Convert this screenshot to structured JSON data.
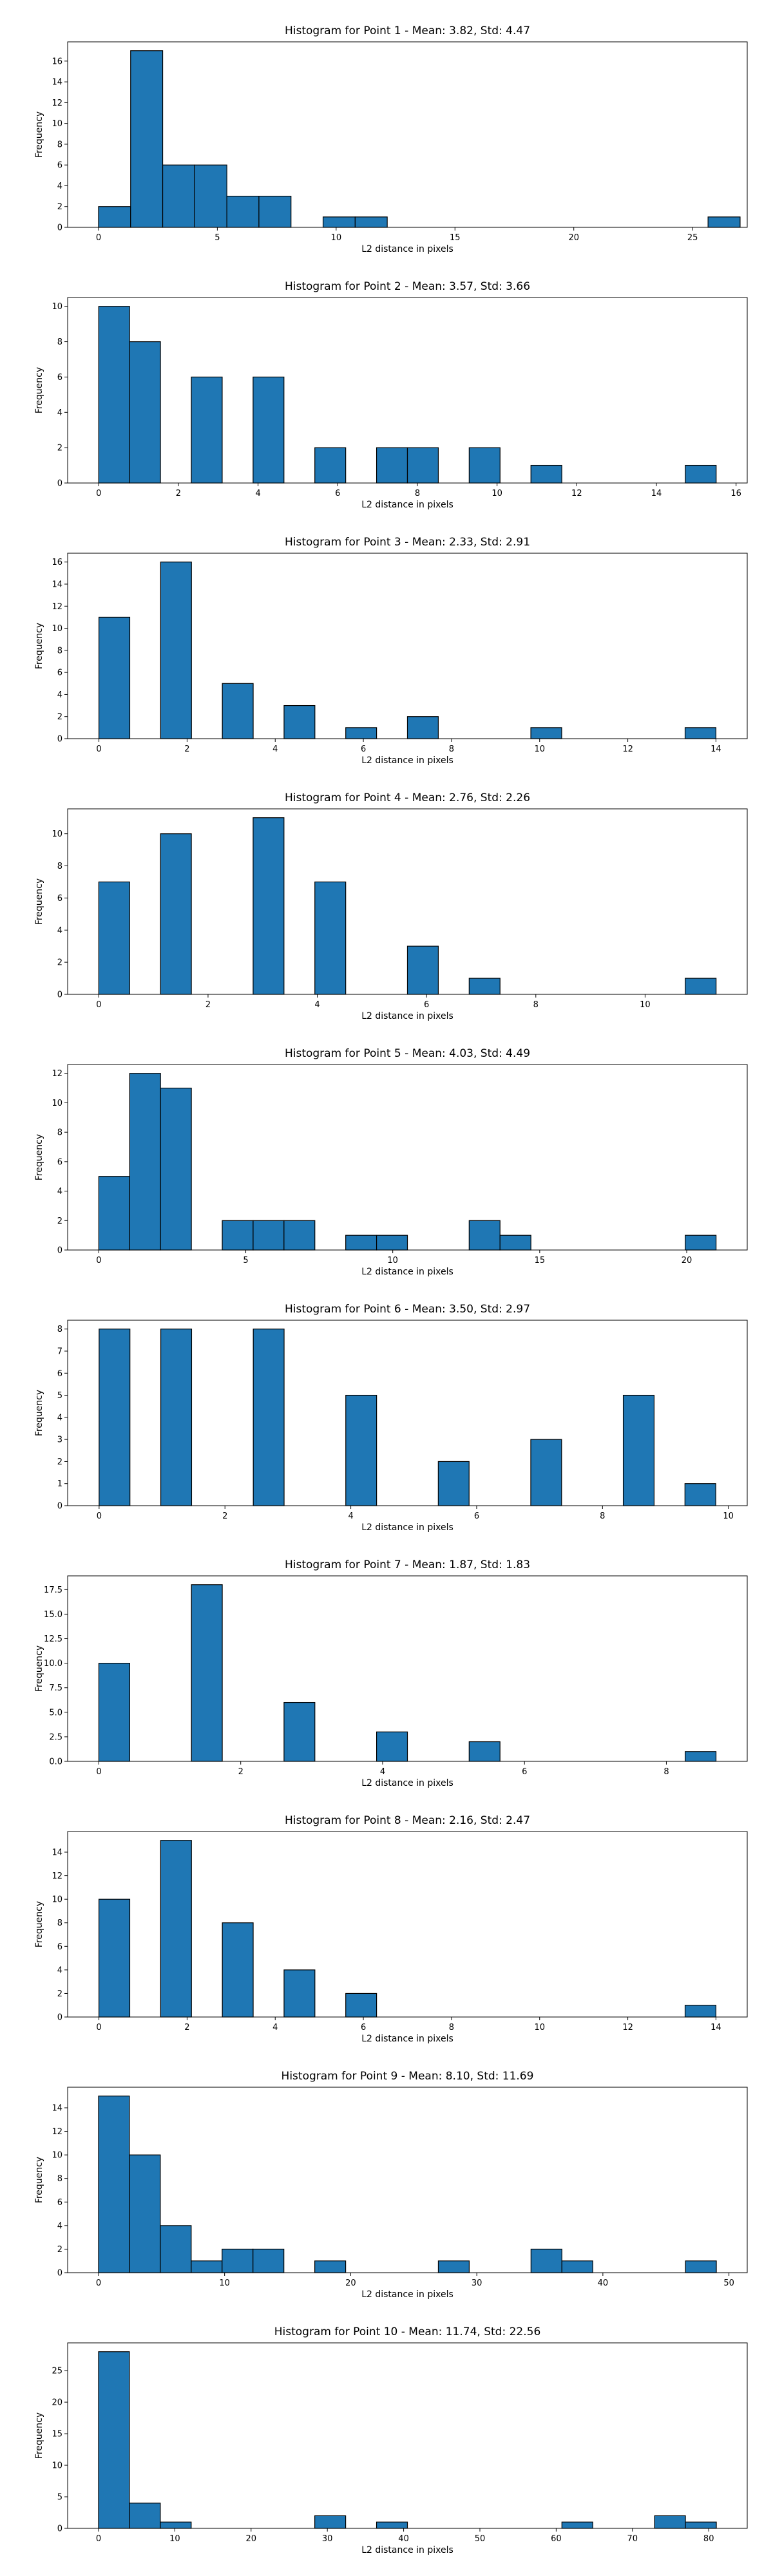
{
  "style": {
    "bar_color": "#1f77b4",
    "edge_color": "#000000"
  },
  "chart_data": [
    {
      "type": "bar",
      "title": "Histogram for Point 1 - Mean: 3.82, Std: 4.47",
      "xlabel": "L2 distance in pixels",
      "ylabel": "Frequency",
      "xlim": [
        -1.3,
        27.3
      ],
      "ylim": [
        0,
        17.85
      ],
      "xticks": [
        0,
        5,
        10,
        15,
        20,
        25
      ],
      "yticks": [
        0,
        2,
        4,
        6,
        8,
        10,
        12,
        14,
        16
      ],
      "bins": [
        {
          "x0": 0.0,
          "x1": 1.35,
          "count": 2
        },
        {
          "x0": 1.35,
          "x1": 2.7,
          "count": 17
        },
        {
          "x0": 2.7,
          "x1": 4.05,
          "count": 6
        },
        {
          "x0": 4.05,
          "x1": 5.4,
          "count": 6
        },
        {
          "x0": 5.4,
          "x1": 6.75,
          "count": 3
        },
        {
          "x0": 6.75,
          "x1": 8.1,
          "count": 3
        },
        {
          "x0": 9.45,
          "x1": 10.8,
          "count": 1
        },
        {
          "x0": 10.8,
          "x1": 12.15,
          "count": 1
        },
        {
          "x0": 25.65,
          "x1": 27.0,
          "count": 1
        }
      ]
    },
    {
      "type": "bar",
      "title": "Histogram for Point 2 - Mean: 3.57, Std: 3.66",
      "xlabel": "L2 distance in pixels",
      "ylabel": "Frequency",
      "xlim": [
        -0.78,
        16.28
      ],
      "ylim": [
        0,
        10.5
      ],
      "xticks": [
        0,
        2,
        4,
        6,
        8,
        10,
        12,
        14,
        16
      ],
      "yticks": [
        0,
        2,
        4,
        6,
        8,
        10
      ],
      "bins": [
        {
          "x0": 0.0,
          "x1": 0.775,
          "count": 10
        },
        {
          "x0": 0.775,
          "x1": 1.55,
          "count": 8
        },
        {
          "x0": 2.325,
          "x1": 3.1,
          "count": 6
        },
        {
          "x0": 3.875,
          "x1": 4.65,
          "count": 6
        },
        {
          "x0": 5.425,
          "x1": 6.2,
          "count": 2
        },
        {
          "x0": 6.975,
          "x1": 7.75,
          "count": 2
        },
        {
          "x0": 7.75,
          "x1": 8.525,
          "count": 2
        },
        {
          "x0": 9.3,
          "x1": 10.075,
          "count": 2
        },
        {
          "x0": 10.85,
          "x1": 11.625,
          "count": 1
        },
        {
          "x0": 14.725,
          "x1": 15.5,
          "count": 1
        }
      ]
    },
    {
      "type": "bar",
      "title": "Histogram for Point 3 - Mean: 2.33, Std: 2.91",
      "xlabel": "L2 distance in pixels",
      "ylabel": "Frequency",
      "xlim": [
        -0.71,
        14.71
      ],
      "ylim": [
        0,
        16.8
      ],
      "xticks": [
        0,
        2,
        4,
        6,
        8,
        10,
        12,
        14
      ],
      "yticks": [
        0,
        2,
        4,
        6,
        8,
        10,
        12,
        14,
        16
      ],
      "bins": [
        {
          "x0": 0.0,
          "x1": 0.7,
          "count": 11
        },
        {
          "x0": 1.4,
          "x1": 2.1,
          "count": 16
        },
        {
          "x0": 2.8,
          "x1": 3.5,
          "count": 5
        },
        {
          "x0": 4.2,
          "x1": 4.9,
          "count": 3
        },
        {
          "x0": 5.6,
          "x1": 6.3,
          "count": 1
        },
        {
          "x0": 7.0,
          "x1": 7.7,
          "count": 2
        },
        {
          "x0": 9.8,
          "x1": 10.5,
          "count": 1
        },
        {
          "x0": 13.3,
          "x1": 14.0,
          "count": 1
        }
      ]
    },
    {
      "type": "bar",
      "title": "Histogram for Point 4 - Mean: 2.76, Std: 2.26",
      "xlabel": "L2 distance in pixels",
      "ylabel": "Frequency",
      "xlim": [
        -0.57,
        11.87
      ],
      "ylim": [
        0,
        11.55
      ],
      "xticks": [
        0,
        2,
        4,
        6,
        8,
        10
      ],
      "yticks": [
        0,
        2,
        4,
        6,
        8,
        10
      ],
      "bins": [
        {
          "x0": 0.0,
          "x1": 0.565,
          "count": 7
        },
        {
          "x0": 1.13,
          "x1": 1.695,
          "count": 10
        },
        {
          "x0": 2.825,
          "x1": 3.39,
          "count": 11
        },
        {
          "x0": 3.955,
          "x1": 4.52,
          "count": 7
        },
        {
          "x0": 5.65,
          "x1": 6.215,
          "count": 3
        },
        {
          "x0": 6.78,
          "x1": 7.345,
          "count": 1
        },
        {
          "x0": 10.735,
          "x1": 11.3,
          "count": 1
        }
      ]
    },
    {
      "type": "bar",
      "title": "Histogram for Point 5 - Mean: 4.03, Std: 4.49",
      "xlabel": "L2 distance in pixels",
      "ylabel": "Frequency",
      "xlim": [
        -1.06,
        22.06
      ],
      "ylim": [
        0,
        12.6
      ],
      "xticks": [
        0,
        5,
        10,
        15,
        20
      ],
      "yticks": [
        0,
        2,
        4,
        6,
        8,
        10,
        12
      ],
      "bins": [
        {
          "x0": 0.0,
          "x1": 1.05,
          "count": 5
        },
        {
          "x0": 1.05,
          "x1": 2.1,
          "count": 12
        },
        {
          "x0": 2.1,
          "x1": 3.15,
          "count": 11
        },
        {
          "x0": 4.2,
          "x1": 5.25,
          "count": 2
        },
        {
          "x0": 5.25,
          "x1": 6.3,
          "count": 2
        },
        {
          "x0": 6.3,
          "x1": 7.35,
          "count": 2
        },
        {
          "x0": 8.4,
          "x1": 9.45,
          "count": 1
        },
        {
          "x0": 9.45,
          "x1": 10.5,
          "count": 1
        },
        {
          "x0": 12.6,
          "x1": 13.65,
          "count": 2
        },
        {
          "x0": 13.65,
          "x1": 14.7,
          "count": 1
        },
        {
          "x0": 19.95,
          "x1": 21.0,
          "count": 1
        }
      ]
    },
    {
      "type": "bar",
      "title": "Histogram for Point 6 - Mean: 3.50, Std: 2.97",
      "xlabel": "L2 distance in pixels",
      "ylabel": "Frequency",
      "xlim": [
        -0.5,
        10.3
      ],
      "ylim": [
        0,
        8.4
      ],
      "xticks": [
        0,
        2,
        4,
        6,
        8,
        10
      ],
      "yticks": [
        0,
        1,
        2,
        3,
        4,
        5,
        6,
        7,
        8
      ],
      "bins": [
        {
          "x0": 0.0,
          "x1": 0.49,
          "count": 8
        },
        {
          "x0": 0.98,
          "x1": 1.47,
          "count": 8
        },
        {
          "x0": 2.45,
          "x1": 2.94,
          "count": 8
        },
        {
          "x0": 3.92,
          "x1": 4.41,
          "count": 5
        },
        {
          "x0": 5.39,
          "x1": 5.88,
          "count": 2
        },
        {
          "x0": 6.86,
          "x1": 7.35,
          "count": 3
        },
        {
          "x0": 8.33,
          "x1": 8.82,
          "count": 5
        },
        {
          "x0": 9.31,
          "x1": 9.8,
          "count": 1
        }
      ]
    },
    {
      "type": "bar",
      "title": "Histogram for Point 7 - Mean: 1.87, Std: 1.83",
      "xlabel": "L2 distance in pixels",
      "ylabel": "Frequency",
      "xlim": [
        -0.44,
        9.14
      ],
      "ylim": [
        0,
        18.9
      ],
      "xticks": [
        0,
        2,
        4,
        6,
        8
      ],
      "yticks": [
        0,
        2.5,
        5.0,
        7.5,
        10.0,
        12.5,
        15.0,
        17.5
      ],
      "yticklabels": [
        "0.0",
        "2.5",
        "5.0",
        "7.5",
        "10.0",
        "12.5",
        "15.0",
        "17.5"
      ],
      "bins": [
        {
          "x0": 0.0,
          "x1": 0.435,
          "count": 10
        },
        {
          "x0": 1.305,
          "x1": 1.74,
          "count": 18
        },
        {
          "x0": 2.61,
          "x1": 3.045,
          "count": 6
        },
        {
          "x0": 3.915,
          "x1": 4.35,
          "count": 3
        },
        {
          "x0": 5.22,
          "x1": 5.655,
          "count": 2
        },
        {
          "x0": 8.265,
          "x1": 8.7,
          "count": 1
        }
      ]
    },
    {
      "type": "bar",
      "title": "Histogram for Point 8 - Mean: 2.16, Std: 2.47",
      "xlabel": "L2 distance in pixels",
      "ylabel": "Frequency",
      "xlim": [
        -0.71,
        14.71
      ],
      "ylim": [
        0,
        15.75
      ],
      "xticks": [
        0,
        2,
        4,
        6,
        8,
        10,
        12,
        14
      ],
      "yticks": [
        0,
        2,
        4,
        6,
        8,
        10,
        12,
        14
      ],
      "bins": [
        {
          "x0": 0.0,
          "x1": 0.7,
          "count": 10
        },
        {
          "x0": 1.4,
          "x1": 2.1,
          "count": 15
        },
        {
          "x0": 2.8,
          "x1": 3.5,
          "count": 8
        },
        {
          "x0": 4.2,
          "x1": 4.9,
          "count": 4
        },
        {
          "x0": 5.6,
          "x1": 6.3,
          "count": 2
        },
        {
          "x0": 13.3,
          "x1": 14.0,
          "count": 1
        }
      ]
    },
    {
      "type": "bar",
      "title": "Histogram for Point 9 - Mean: 8.10, Std: 11.69",
      "xlabel": "L2 distance in pixels",
      "ylabel": "Frequency",
      "xlim": [
        -2.45,
        51.45
      ],
      "ylim": [
        0,
        15.75
      ],
      "xticks": [
        0,
        10,
        20,
        30,
        40,
        50
      ],
      "yticks": [
        0,
        2,
        4,
        6,
        8,
        10,
        12,
        14
      ],
      "bins": [
        {
          "x0": 0.0,
          "x1": 2.45,
          "count": 15
        },
        {
          "x0": 2.45,
          "x1": 4.9,
          "count": 10
        },
        {
          "x0": 4.9,
          "x1": 7.35,
          "count": 4
        },
        {
          "x0": 7.35,
          "x1": 9.8,
          "count": 1
        },
        {
          "x0": 9.8,
          "x1": 12.25,
          "count": 2
        },
        {
          "x0": 12.25,
          "x1": 14.7,
          "count": 2
        },
        {
          "x0": 17.15,
          "x1": 19.6,
          "count": 1
        },
        {
          "x0": 26.95,
          "x1": 29.4,
          "count": 1
        },
        {
          "x0": 34.3,
          "x1": 36.75,
          "count": 2
        },
        {
          "x0": 36.75,
          "x1": 39.2,
          "count": 1
        },
        {
          "x0": 46.55,
          "x1": 49.0,
          "count": 1
        }
      ]
    },
    {
      "type": "bar",
      "title": "Histogram for Point 10 - Mean: 11.74, Std: 22.56",
      "xlabel": "L2 distance in pixels",
      "ylabel": "Frequency",
      "xlim": [
        -4.05,
        85.05
      ],
      "ylim": [
        0,
        29.4
      ],
      "xticks": [
        0,
        10,
        20,
        30,
        40,
        50,
        60,
        70,
        80
      ],
      "yticks": [
        0,
        5,
        10,
        15,
        20,
        25
      ],
      "bins": [
        {
          "x0": 0.0,
          "x1": 4.05,
          "count": 28
        },
        {
          "x0": 4.05,
          "x1": 8.1,
          "count": 4
        },
        {
          "x0": 8.1,
          "x1": 12.15,
          "count": 1
        },
        {
          "x0": 28.35,
          "x1": 32.4,
          "count": 2
        },
        {
          "x0": 36.45,
          "x1": 40.5,
          "count": 1
        },
        {
          "x0": 60.75,
          "x1": 64.8,
          "count": 1
        },
        {
          "x0": 72.9,
          "x1": 76.95,
          "count": 2
        },
        {
          "x0": 76.95,
          "x1": 81.0,
          "count": 1
        }
      ]
    }
  ]
}
